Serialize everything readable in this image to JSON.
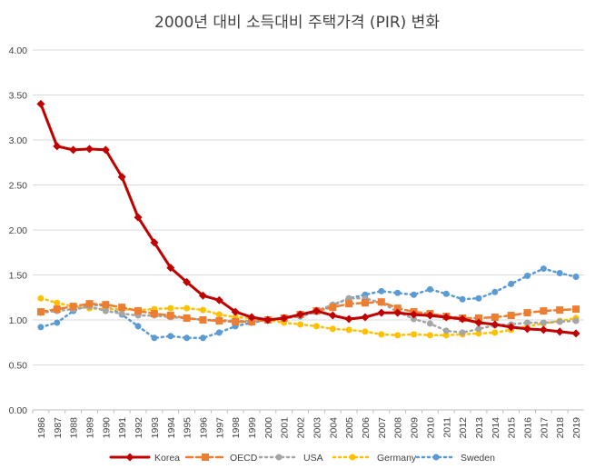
{
  "chart_data": {
    "type": "line",
    "title": "2000년 대비 소득대비 주택가격 (PIR) 변화",
    "xlabel": "",
    "ylabel": "",
    "ylim": [
      0,
      4
    ],
    "yticks": [
      "0.00",
      "0.50",
      "1.00",
      "1.50",
      "2.00",
      "2.50",
      "3.00",
      "3.50",
      "4.00"
    ],
    "grid": true,
    "legend_position": "bottom",
    "categories": [
      "1986",
      "1987",
      "1988",
      "1989",
      "1990",
      "1991",
      "1992",
      "1993",
      "1994",
      "1995",
      "1996",
      "1997",
      "1998",
      "1999",
      "2000",
      "2001",
      "2002",
      "2003",
      "2004",
      "2005",
      "2006",
      "2007",
      "2008",
      "2009",
      "2010",
      "2011",
      "2012",
      "2013",
      "2014",
      "2015",
      "2016",
      "2017",
      "2018",
      "2019"
    ],
    "series": [
      {
        "name": "Korea",
        "color": "#C00000",
        "style": "solid",
        "marker": "diamond",
        "values": [
          3.4,
          2.93,
          2.89,
          2.9,
          2.89,
          2.59,
          2.14,
          1.86,
          1.58,
          1.42,
          1.27,
          1.22,
          1.09,
          1.03,
          1.0,
          1.02,
          1.06,
          1.1,
          1.05,
          1.01,
          1.03,
          1.08,
          1.08,
          1.06,
          1.05,
          1.03,
          1.01,
          0.97,
          0.95,
          0.92,
          0.9,
          0.89,
          0.87,
          0.85
        ]
      },
      {
        "name": "OECD",
        "color": "#ED7D31",
        "style": "dashed",
        "marker": "square",
        "values": [
          1.09,
          1.12,
          1.15,
          1.18,
          1.17,
          1.14,
          1.1,
          1.07,
          1.05,
          1.02,
          1.0,
          0.99,
          0.98,
          0.98,
          1.0,
          1.02,
          1.06,
          1.1,
          1.14,
          1.18,
          1.19,
          1.2,
          1.13,
          1.09,
          1.07,
          1.04,
          1.02,
          1.02,
          1.03,
          1.05,
          1.08,
          1.1,
          1.11,
          1.12
        ]
      },
      {
        "name": "USA",
        "color": "#A5A5A5",
        "style": "dotted",
        "marker": "circle",
        "values": [
          1.08,
          1.1,
          1.12,
          1.15,
          1.1,
          1.07,
          1.05,
          1.05,
          1.03,
          1.02,
          1.0,
          1.0,
          0.99,
          0.99,
          1.0,
          1.02,
          1.05,
          1.1,
          1.17,
          1.24,
          1.24,
          1.19,
          1.09,
          1.01,
          0.96,
          0.88,
          0.86,
          0.9,
          0.94,
          0.95,
          0.97,
          0.97,
          0.98,
          0.99
        ]
      },
      {
        "name": "Germany",
        "color": "#FFC000",
        "style": "dotted",
        "marker": "circle",
        "values": [
          1.24,
          1.19,
          1.15,
          1.13,
          1.12,
          1.12,
          1.11,
          1.12,
          1.13,
          1.13,
          1.11,
          1.06,
          1.03,
          1.02,
          1.0,
          0.97,
          0.95,
          0.93,
          0.9,
          0.89,
          0.87,
          0.84,
          0.83,
          0.84,
          0.83,
          0.83,
          0.84,
          0.85,
          0.86,
          0.89,
          0.93,
          0.96,
          0.99,
          1.02
        ]
      },
      {
        "name": "Sweden",
        "color": "#5B9BD5",
        "style": "dotted",
        "marker": "circle",
        "values": [
          0.92,
          0.97,
          1.1,
          1.17,
          1.16,
          1.06,
          0.93,
          0.8,
          0.82,
          0.8,
          0.8,
          0.86,
          0.93,
          0.97,
          1.0,
          1.02,
          1.04,
          1.09,
          1.16,
          1.24,
          1.28,
          1.32,
          1.3,
          1.28,
          1.34,
          1.29,
          1.23,
          1.24,
          1.31,
          1.4,
          1.49,
          1.57,
          1.52,
          1.48
        ]
      }
    ]
  }
}
